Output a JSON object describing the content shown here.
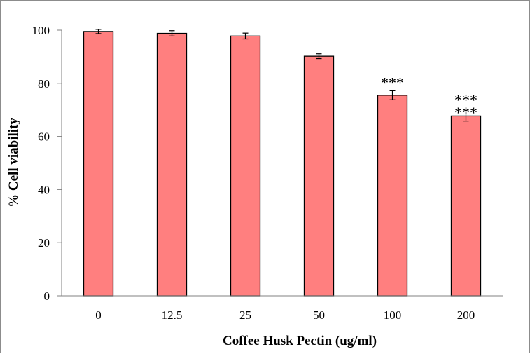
{
  "chart_data": {
    "type": "bar",
    "categories": [
      "0",
      "12.5",
      "25",
      "50",
      "100",
      "200"
    ],
    "values": [
      99.5,
      98.8,
      97.8,
      90.2,
      75.5,
      67.7
    ],
    "errors": [
      0.8,
      1.0,
      1.1,
      0.9,
      1.7,
      1.9
    ],
    "annotations": [
      "",
      "",
      "",
      "",
      "***",
      "***\n***"
    ],
    "title": "",
    "xlabel": "Coffee Husk Pectin (ug/ml)",
    "ylabel": "% Cell viability",
    "ylim": [
      0,
      100
    ],
    "yticks": [
      0,
      20,
      40,
      60,
      80,
      100
    ],
    "grid": false,
    "bar_color": "#ff7f7f",
    "bar_edge_color": "#000000"
  }
}
